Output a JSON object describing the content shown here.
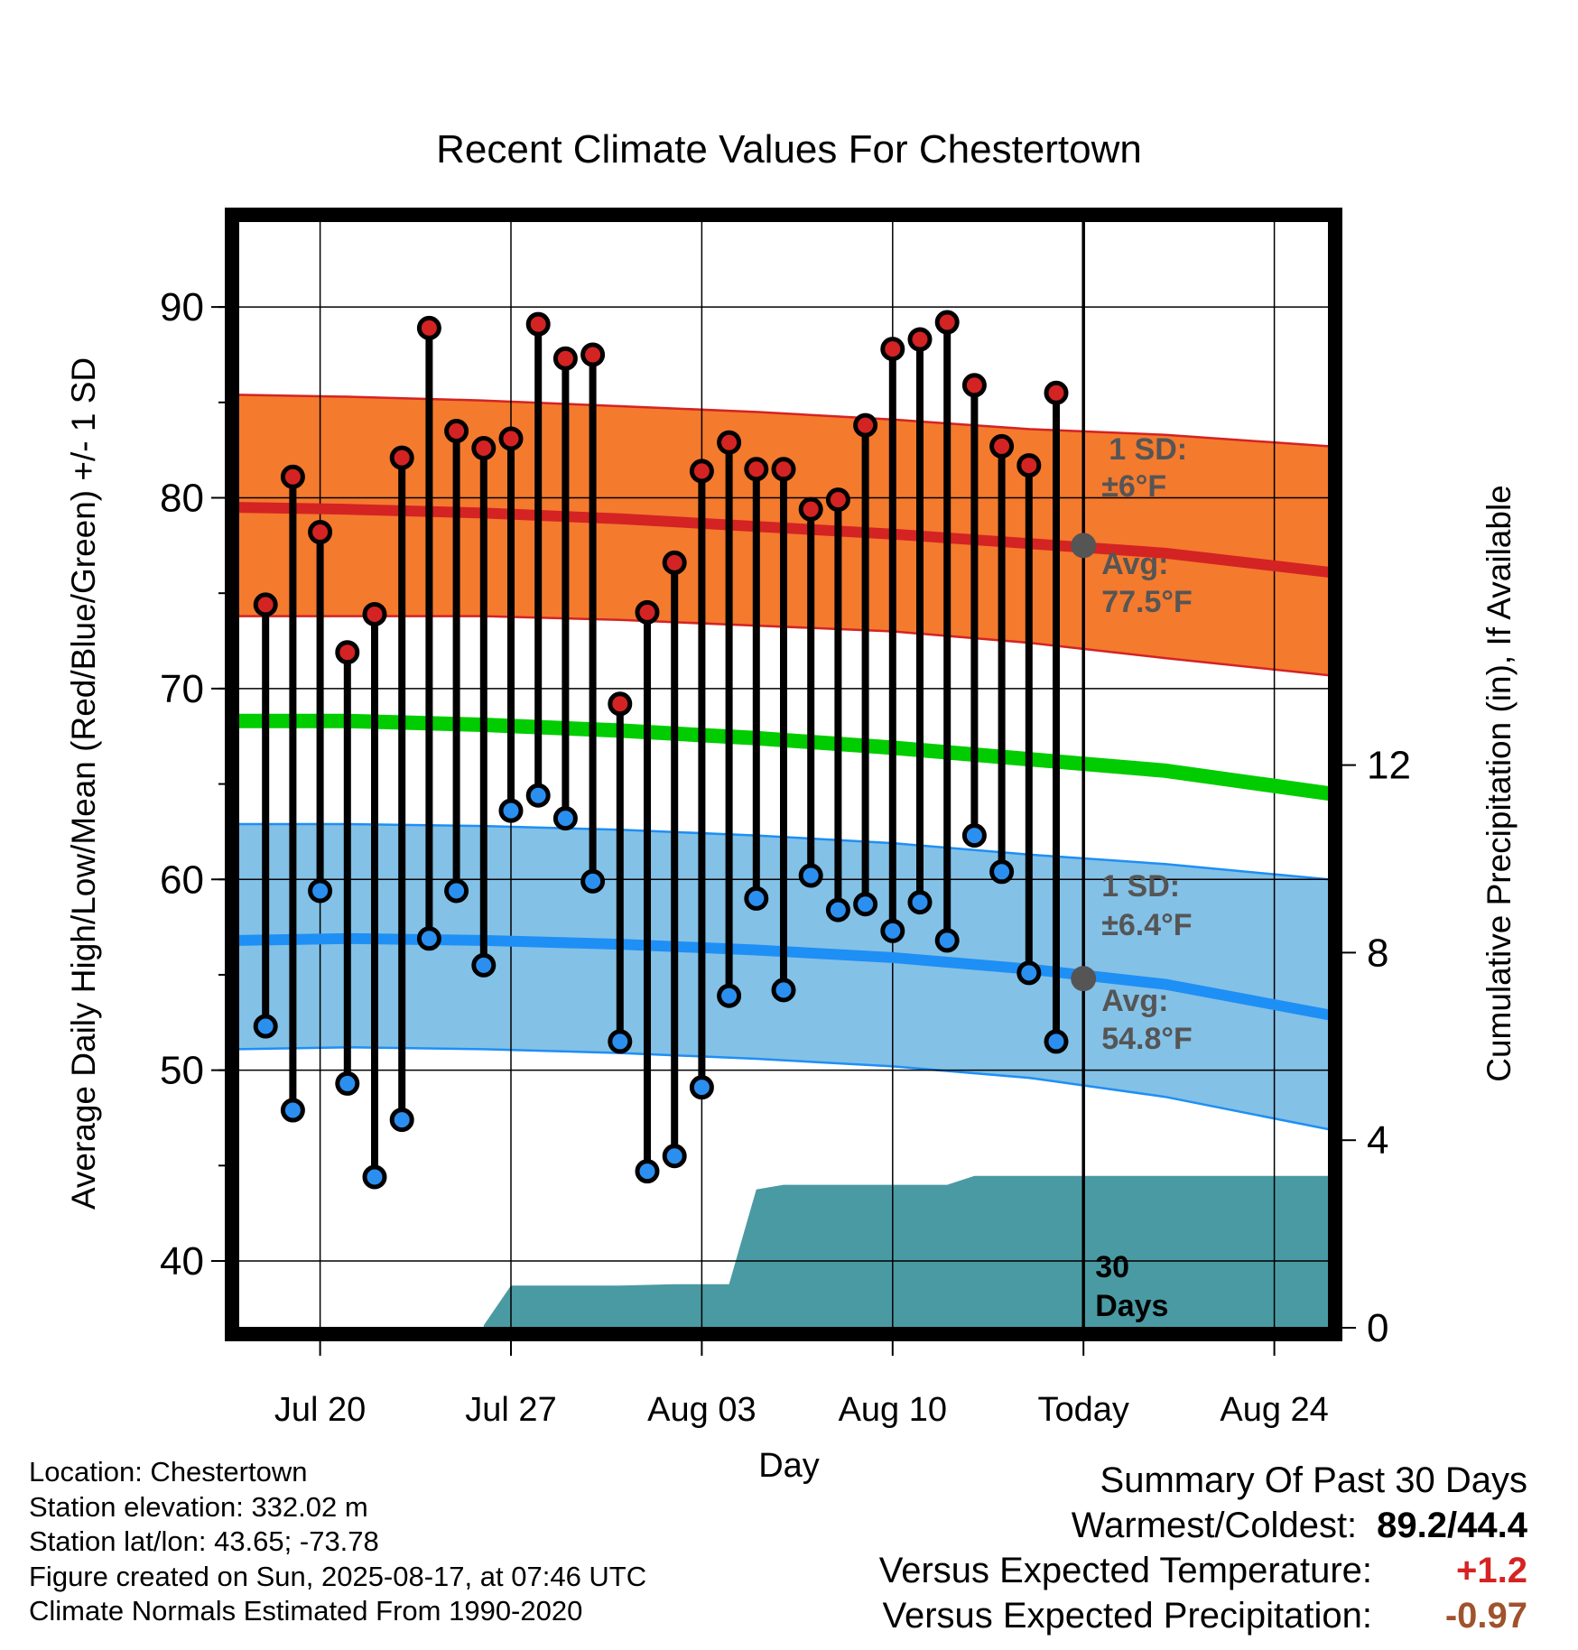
{
  "chart_data": {
    "type": "line",
    "title": "Recent Climate Values For Chestertown",
    "xlabel": "Day",
    "ylabel": "Average Daily High/Low/Mean (Red/Blue/Green) +/- 1 SD",
    "y2label": "Cumulative Precipitation (in), If Available",
    "ylim": [
      36.5,
      94.5
    ],
    "y2lim": [
      0,
      23.6
    ],
    "yticks": [
      40,
      50,
      60,
      70,
      80,
      90
    ],
    "y2ticks": [
      0,
      4,
      8,
      12
    ],
    "x_range": [
      "2025-07-17",
      "2025-08-26"
    ],
    "x_ticks": [
      {
        "date": "2025-07-20",
        "label": "Jul 20"
      },
      {
        "date": "2025-07-27",
        "label": "Jul 27"
      },
      {
        "date": "2025-08-03",
        "label": "Aug 03"
      },
      {
        "date": "2025-08-10",
        "label": "Aug 10"
      },
      {
        "date": "2025-08-17",
        "label": "Today"
      },
      {
        "date": "2025-08-24",
        "label": "Aug 24"
      }
    ],
    "grid": true,
    "colors": {
      "high_band": "#f47a2e",
      "high_line": "#d42323",
      "high_edge": "#d42323",
      "low_band": "#84c1e6",
      "low_line": "#1e8ff5",
      "low_edge": "#1e8ff5",
      "mean_line": "#00cc00",
      "precip": "#4a9aa3",
      "high_marker": "#d42323",
      "low_marker": "#2b8ff0",
      "stem": "#000000",
      "today_marker": "#555555",
      "annotation_text": "#555555"
    },
    "daily": {
      "dates": [
        "2025-07-18",
        "2025-07-19",
        "2025-07-20",
        "2025-07-21",
        "2025-07-22",
        "2025-07-23",
        "2025-07-24",
        "2025-07-25",
        "2025-07-26",
        "2025-07-27",
        "2025-07-28",
        "2025-07-29",
        "2025-07-30",
        "2025-07-31",
        "2025-08-01",
        "2025-08-02",
        "2025-08-03",
        "2025-08-04",
        "2025-08-05",
        "2025-08-06",
        "2025-08-07",
        "2025-08-08",
        "2025-08-09",
        "2025-08-10",
        "2025-08-11",
        "2025-08-12",
        "2025-08-13",
        "2025-08-14",
        "2025-08-15",
        "2025-08-16"
      ],
      "high": [
        74.4,
        81.1,
        78.2,
        71.9,
        73.9,
        82.1,
        88.9,
        83.5,
        82.6,
        83.1,
        89.1,
        87.3,
        87.5,
        69.2,
        74.0,
        76.6,
        81.4,
        82.9,
        81.5,
        81.5,
        79.4,
        79.9,
        83.8,
        87.8,
        88.3,
        89.2,
        85.9,
        82.7,
        81.7,
        85.5
      ],
      "low": [
        52.3,
        47.9,
        59.4,
        49.3,
        44.4,
        47.4,
        56.9,
        59.4,
        55.5,
        63.6,
        64.4,
        63.2,
        59.9,
        51.5,
        44.7,
        45.5,
        49.1,
        53.9,
        59.0,
        54.2,
        60.2,
        58.4,
        58.7,
        57.3,
        58.8,
        56.8,
        62.3,
        60.4,
        55.1,
        51.5
      ]
    },
    "normals": {
      "dates": [
        "2025-07-17",
        "2025-07-21",
        "2025-07-26",
        "2025-07-31",
        "2025-08-05",
        "2025-08-10",
        "2025-08-15",
        "2025-08-20",
        "2025-08-26"
      ],
      "high_mean": [
        79.5,
        79.4,
        79.2,
        78.9,
        78.5,
        78.1,
        77.6,
        77.1,
        76.1
      ],
      "high_upper": [
        85.4,
        85.3,
        85.1,
        84.8,
        84.5,
        84.1,
        83.6,
        83.3,
        82.7
      ],
      "high_lower": [
        73.8,
        73.8,
        73.8,
        73.6,
        73.3,
        73.0,
        72.4,
        71.6,
        70.7
      ],
      "mean": [
        68.3,
        68.3,
        68.1,
        67.8,
        67.4,
        66.9,
        66.3,
        65.7,
        64.5
      ],
      "low_mean": [
        56.8,
        56.9,
        56.8,
        56.6,
        56.3,
        55.9,
        55.3,
        54.5,
        52.9
      ],
      "low_upper": [
        62.9,
        62.9,
        62.8,
        62.6,
        62.3,
        61.9,
        61.3,
        60.8,
        60.0
      ],
      "low_lower": [
        51.1,
        51.2,
        51.1,
        50.9,
        50.6,
        50.2,
        49.6,
        48.6,
        46.9
      ]
    },
    "precip": {
      "dates": [
        "2025-07-17",
        "2025-07-26",
        "2025-07-26",
        "2025-07-27",
        "2025-07-31",
        "2025-08-02",
        "2025-08-04",
        "2025-08-04",
        "2025-08-05",
        "2025-08-05",
        "2025-08-06",
        "2025-08-12",
        "2025-08-13",
        "2025-08-16",
        "2025-08-26"
      ],
      "values": [
        0,
        0,
        0.05,
        0.9,
        0.9,
        0.93,
        0.93,
        0.93,
        2.95,
        2.95,
        3.05,
        3.05,
        3.24,
        3.24,
        3.24
      ]
    },
    "annotations": {
      "high_sd": {
        "line1": "1 SD:",
        "line2": "±6°F"
      },
      "high_avg": {
        "line1": "Avg:",
        "line2": "77.5°F"
      },
      "low_sd": {
        "line1": "1 SD:",
        "line2": "±6.4°F"
      },
      "low_avg": {
        "line1": "Avg:",
        "line2": "54.8°F"
      },
      "days": {
        "line1": "30",
        "line2": "Days"
      },
      "today_date": "2025-08-17",
      "today_high_avg": 77.5,
      "today_low_avg": 54.8
    }
  },
  "info": {
    "location": "Location: Chestertown",
    "elevation": "Station elevation: 332.02 m",
    "latlon": "Station lat/lon: 43.65; -73.78",
    "created": "Figure created on Sun, 2025-08-17, at 07:46 UTC",
    "normals": "Climate Normals Estimated From 1990-2020"
  },
  "summary": {
    "heading": "Summary Of Past 30 Days",
    "warmest_label": "Warmest/Coldest:",
    "warmest_value": "89.2/44.4",
    "temp_label": "Versus Expected Temperature:",
    "temp_value": "+1.2",
    "temp_color": "#d42323",
    "precip_label": "Versus Expected Precipitation:",
    "precip_value": "-0.97",
    "precip_color": "#a0522d"
  }
}
